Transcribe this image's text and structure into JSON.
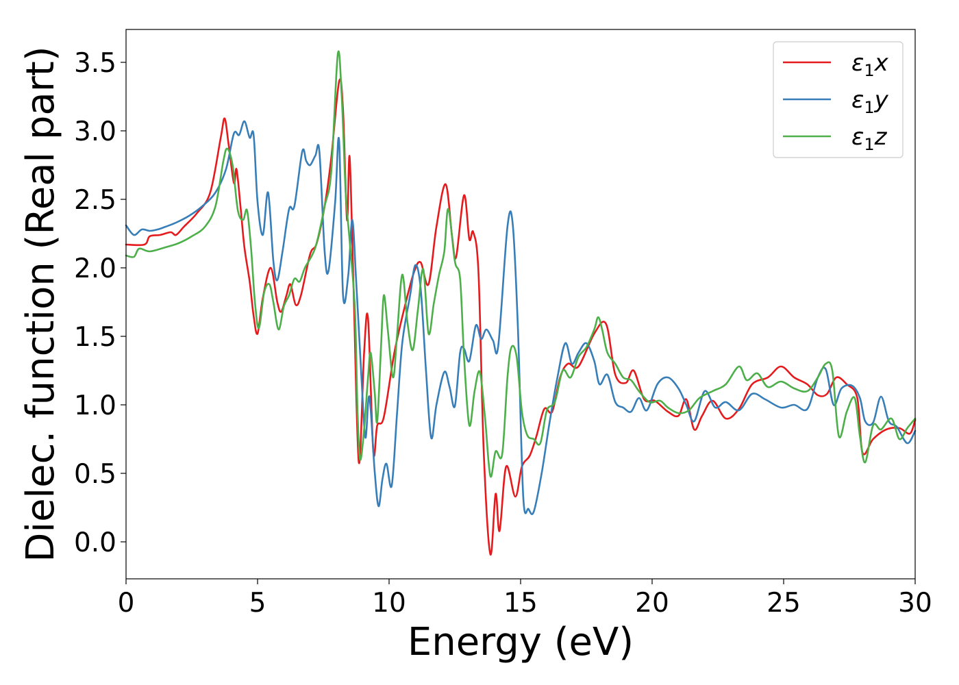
{
  "chart_data": {
    "type": "line",
    "title": "",
    "xlabel": "Energy (eV)",
    "ylabel": "Dielec. function (Real part)",
    "xlim": [
      0,
      30
    ],
    "ylim": [
      -0.27,
      3.74
    ],
    "xticks": [
      0,
      5,
      10,
      15,
      20,
      25,
      30
    ],
    "yticks": [
      0.0,
      0.5,
      1.0,
      1.5,
      2.0,
      2.5,
      3.0,
      3.5
    ],
    "xtick_labels": [
      "0",
      "5",
      "10",
      "15",
      "20",
      "25",
      "30"
    ],
    "ytick_labels": [
      "0.0",
      "0.5",
      "1.0",
      "1.5",
      "2.0",
      "2.5",
      "3.0",
      "3.5"
    ],
    "grid": false,
    "legend_position": "top-right",
    "series": [
      {
        "name": "ε1x",
        "legend_base": "ε",
        "legend_sub": "1",
        "legend_suffix": "x",
        "color": "#e41a1c",
        "x": [
          0,
          0.7,
          0.9,
          1.3,
          1.7,
          1.9,
          2.2,
          2.7,
          3.2,
          3.6,
          3.75,
          3.9,
          4.1,
          4.2,
          4.35,
          4.5,
          4.7,
          4.85,
          5.0,
          5.2,
          5.5,
          5.75,
          5.9,
          6.1,
          6.25,
          6.45,
          6.65,
          7.0,
          7.25,
          7.55,
          7.8,
          8.1,
          8.25,
          8.4,
          8.5,
          8.65,
          8.85,
          9.05,
          9.2,
          9.4,
          9.55,
          9.8,
          10.2,
          10.6,
          10.95,
          11.2,
          11.5,
          11.8,
          12.15,
          12.4,
          12.55,
          12.85,
          13.05,
          13.2,
          13.4,
          13.6,
          13.85,
          14.05,
          14.2,
          14.45,
          14.8,
          15.05,
          15.35,
          15.6,
          15.9,
          16.2,
          16.5,
          16.8,
          17.2,
          17.8,
          18.25,
          18.6,
          19.0,
          19.3,
          19.7,
          20.1,
          20.6,
          21.0,
          21.3,
          21.6,
          21.9,
          22.3,
          22.8,
          23.3,
          23.8,
          24.4,
          24.9,
          25.4,
          25.9,
          26.3,
          26.65,
          27.0,
          27.4,
          27.8,
          28.0,
          28.4,
          28.9,
          29.4,
          29.8,
          30.0
        ],
        "y": [
          2.17,
          2.17,
          2.23,
          2.24,
          2.26,
          2.24,
          2.3,
          2.4,
          2.55,
          2.95,
          3.09,
          2.9,
          2.62,
          2.72,
          2.45,
          2.15,
          1.9,
          1.65,
          1.52,
          1.78,
          2.0,
          1.75,
          1.68,
          1.8,
          1.88,
          1.73,
          1.8,
          2.1,
          2.18,
          2.45,
          2.8,
          3.36,
          3.15,
          2.35,
          2.81,
          1.85,
          0.58,
          1.38,
          1.63,
          0.66,
          0.85,
          0.91,
          1.38,
          1.72,
          1.97,
          2.04,
          1.88,
          2.3,
          2.61,
          2.22,
          2.08,
          2.53,
          2.21,
          2.26,
          1.96,
          0.65,
          -0.09,
          0.35,
          0.08,
          0.55,
          0.33,
          0.55,
          0.63,
          0.77,
          0.97,
          0.95,
          1.2,
          1.3,
          1.28,
          1.52,
          1.59,
          1.22,
          1.16,
          1.25,
          1.04,
          1.03,
          0.95,
          0.92,
          1.04,
          0.82,
          0.92,
          1.03,
          0.9,
          0.97,
          1.15,
          1.2,
          1.28,
          1.2,
          1.15,
          1.07,
          1.08,
          1.2,
          1.15,
          1.05,
          0.65,
          0.75,
          0.82,
          0.83,
          0.79,
          0.89
        ]
      },
      {
        "name": "ε1y",
        "legend_base": "ε",
        "legend_sub": "1",
        "legend_suffix": "y",
        "color": "#377eb8",
        "x": [
          0,
          0.3,
          0.6,
          0.9,
          1.2,
          1.5,
          1.9,
          2.4,
          2.9,
          3.4,
          3.8,
          4.1,
          4.3,
          4.5,
          4.7,
          4.85,
          5.0,
          5.2,
          5.4,
          5.6,
          5.75,
          5.95,
          6.2,
          6.4,
          6.7,
          6.85,
          7.0,
          7.2,
          7.35,
          7.55,
          7.7,
          7.95,
          8.1,
          8.25,
          8.45,
          8.6,
          8.75,
          8.95,
          9.1,
          9.25,
          9.45,
          9.6,
          9.75,
          9.9,
          10.1,
          10.3,
          10.5,
          10.8,
          11.0,
          11.2,
          11.4,
          11.6,
          11.8,
          12.1,
          12.3,
          12.5,
          12.7,
          12.85,
          13.05,
          13.3,
          13.5,
          13.7,
          13.95,
          14.15,
          14.5,
          14.7,
          14.9,
          15.1,
          15.3,
          15.5,
          15.8,
          16.1,
          16.4,
          16.7,
          16.95,
          17.2,
          17.5,
          17.8,
          18.0,
          18.3,
          18.6,
          18.9,
          19.2,
          19.5,
          19.8,
          20.2,
          20.6,
          21.0,
          21.3,
          21.6,
          22.0,
          22.4,
          22.8,
          23.3,
          23.8,
          24.3,
          24.9,
          25.4,
          25.9,
          26.3,
          26.6,
          26.9,
          27.2,
          27.6,
          27.9,
          28.1,
          28.4,
          28.7,
          29.0,
          29.3,
          29.7,
          30.0
        ],
        "y": [
          2.31,
          2.24,
          2.28,
          2.27,
          2.28,
          2.3,
          2.33,
          2.38,
          2.45,
          2.55,
          2.72,
          2.98,
          2.97,
          3.07,
          2.95,
          2.97,
          2.48,
          2.24,
          2.55,
          2.05,
          1.91,
          2.12,
          2.43,
          2.45,
          2.85,
          2.78,
          2.75,
          2.82,
          2.85,
          2.12,
          1.98,
          2.48,
          2.93,
          1.8,
          1.95,
          2.35,
          1.9,
          1.2,
          0.76,
          1.06,
          0.52,
          0.26,
          0.46,
          0.57,
          0.41,
          0.93,
          1.45,
          1.8,
          2.02,
          1.85,
          1.26,
          0.76,
          1.0,
          1.24,
          1.13,
          0.99,
          1.38,
          1.41,
          1.32,
          1.58,
          1.48,
          1.55,
          1.47,
          1.43,
          2.3,
          2.32,
          1.55,
          0.33,
          0.24,
          0.22,
          0.5,
          0.87,
          1.2,
          1.45,
          1.3,
          1.38,
          1.45,
          1.32,
          1.15,
          1.22,
          1.02,
          0.98,
          0.95,
          1.05,
          0.96,
          1.15,
          1.2,
          1.12,
          1.0,
          0.88,
          1.1,
          0.98,
          1.02,
          0.96,
          1.08,
          1.04,
          0.98,
          1.0,
          0.97,
          1.2,
          1.26,
          1.0,
          1.12,
          1.14,
          1.05,
          0.88,
          0.87,
          1.06,
          0.88,
          0.84,
          0.72,
          0.81
        ]
      },
      {
        "name": "ε1z",
        "legend_base": "ε",
        "legend_sub": "1",
        "legend_suffix": "z",
        "color": "#4daf4a",
        "x": [
          0,
          0.3,
          0.5,
          0.9,
          1.5,
          2.0,
          2.5,
          3.0,
          3.4,
          3.7,
          3.85,
          4.05,
          4.25,
          4.45,
          4.6,
          4.75,
          4.9,
          5.05,
          5.25,
          5.45,
          5.6,
          5.8,
          6.0,
          6.2,
          6.4,
          6.6,
          6.8,
          7.2,
          7.55,
          7.8,
          8.05,
          8.2,
          8.35,
          8.5,
          8.7,
          8.8,
          8.9,
          9.05,
          9.2,
          9.3,
          9.45,
          9.55,
          9.7,
          9.8,
          9.95,
          10.15,
          10.3,
          10.5,
          10.7,
          10.9,
          11.1,
          11.3,
          11.5,
          11.7,
          11.9,
          12.1,
          12.25,
          12.5,
          12.7,
          12.85,
          13.05,
          13.25,
          13.45,
          13.65,
          13.85,
          14.05,
          14.3,
          14.5,
          14.65,
          14.85,
          15.05,
          15.25,
          15.5,
          15.75,
          16.0,
          16.3,
          16.6,
          16.9,
          17.2,
          17.5,
          17.8,
          17.95,
          18.1,
          18.3,
          18.6,
          18.9,
          19.2,
          19.5,
          19.9,
          20.3,
          20.6,
          21.0,
          21.4,
          21.8,
          22.3,
          22.8,
          23.3,
          23.6,
          24.0,
          24.4,
          24.9,
          25.4,
          25.9,
          26.3,
          26.6,
          26.85,
          27.1,
          27.4,
          27.7,
          27.9,
          28.1,
          28.4,
          28.7,
          29.1,
          29.4,
          29.7,
          30.0
        ],
        "y": [
          2.09,
          2.08,
          2.14,
          2.12,
          2.15,
          2.18,
          2.23,
          2.3,
          2.45,
          2.78,
          2.87,
          2.75,
          2.42,
          2.35,
          2.42,
          2.15,
          1.75,
          1.56,
          1.82,
          1.88,
          1.75,
          1.55,
          1.72,
          1.8,
          1.92,
          1.9,
          2.0,
          2.15,
          2.45,
          2.7,
          3.56,
          3.25,
          2.55,
          2.2,
          1.7,
          0.95,
          0.6,
          0.82,
          1.2,
          1.38,
          1.1,
          0.88,
          1.45,
          1.8,
          1.55,
          1.2,
          1.5,
          1.95,
          1.6,
          1.4,
          1.7,
          1.99,
          1.52,
          1.74,
          1.95,
          2.12,
          2.43,
          2.05,
          1.92,
          1.35,
          0.85,
          1.1,
          1.24,
          0.9,
          0.48,
          0.66,
          0.64,
          1.2,
          1.42,
          1.35,
          0.95,
          0.78,
          0.75,
          0.72,
          0.96,
          1.02,
          1.25,
          1.2,
          1.35,
          1.42,
          1.55,
          1.64,
          1.55,
          1.38,
          1.3,
          1.2,
          1.18,
          1.1,
          1.02,
          1.03,
          0.98,
          0.94,
          0.96,
          1.05,
          1.1,
          1.15,
          1.28,
          1.18,
          1.23,
          1.13,
          1.17,
          1.12,
          1.1,
          1.2,
          1.3,
          1.25,
          0.77,
          0.95,
          1.05,
          0.77,
          0.58,
          0.85,
          0.82,
          0.9,
          0.75,
          0.83,
          0.9
        ]
      }
    ]
  }
}
